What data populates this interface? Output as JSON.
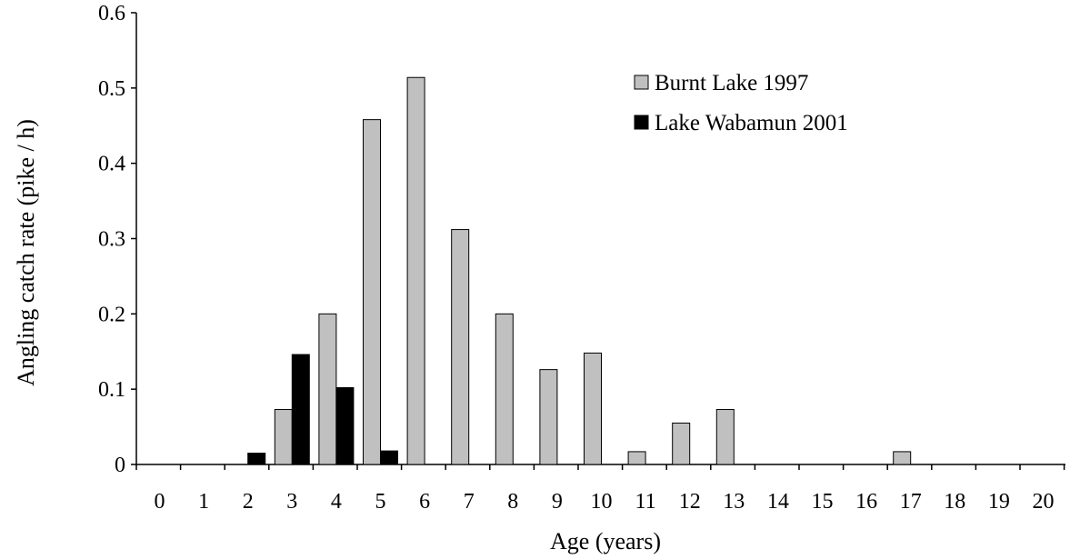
{
  "chart_data": {
    "type": "bar",
    "xlabel": "Age (years)",
    "ylabel": "Angling catch rate (pike / h)",
    "ylim": [
      0,
      0.6
    ],
    "yticks": [
      "0",
      "0.1",
      "0.2",
      "0.3",
      "0.4",
      "0.5",
      "0.6"
    ],
    "categories": [
      "0",
      "1",
      "2",
      "3",
      "4",
      "5",
      "6",
      "7",
      "8",
      "9",
      "10",
      "11",
      "12",
      "13",
      "14",
      "15",
      "16",
      "17",
      "18",
      "19",
      "20"
    ],
    "series": [
      {
        "name": "Burnt Lake 1997",
        "color": "#c0c0c0",
        "values": [
          0,
          0,
          0,
          0.073,
          0.2,
          0.458,
          0.514,
          0.312,
          0.2,
          0.126,
          0.148,
          0.017,
          0.055,
          0.073,
          0,
          0,
          0,
          0.017,
          0,
          0,
          0
        ]
      },
      {
        "name": "Lake Wabamun 2001",
        "color": "#000000",
        "values": [
          0,
          0,
          0.015,
          0.146,
          0.102,
          0.018,
          0,
          0,
          0,
          0,
          0,
          0,
          0,
          0,
          0,
          0,
          0,
          0,
          0,
          0,
          0
        ]
      }
    ],
    "legend": "top-right",
    "grid": false
  }
}
